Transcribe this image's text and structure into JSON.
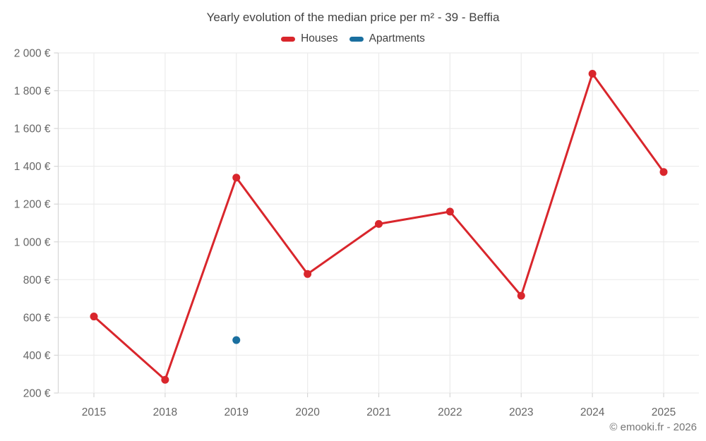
{
  "header": {
    "title": "Yearly evolution of the median price per m² - 39 - Beffia"
  },
  "legend": {
    "items": [
      {
        "label": "Houses",
        "color": "#d9262c"
      },
      {
        "label": "Apartments",
        "color": "#1a6f9f"
      }
    ]
  },
  "footer": {
    "attribution": "© emooki.fr - 2026"
  },
  "chart_data": {
    "type": "line",
    "title": "Yearly evolution of the median price per m² - 39 - Beffia",
    "categories": [
      "2015",
      "2018",
      "2019",
      "2020",
      "2021",
      "2022",
      "2023",
      "2024",
      "2025"
    ],
    "series": [
      {
        "name": "Houses",
        "color": "#d9262c",
        "values": [
          605,
          270,
          1340,
          830,
          1095,
          1160,
          715,
          1890,
          1370
        ]
      },
      {
        "name": "Apartments",
        "color": "#1a6f9f",
        "values": [
          null,
          null,
          480,
          null,
          null,
          null,
          null,
          null,
          null
        ]
      }
    ],
    "ylabel": "",
    "xlabel": "",
    "currency": "€",
    "ylim": [
      200,
      2000
    ],
    "ytick_step": 200,
    "y_tick_labels": [
      "200 €",
      "400 €",
      "600 €",
      "800 €",
      "1 000 €",
      "1 200 €",
      "1 400 €",
      "1 600 €",
      "1 800 €",
      "2 000 €"
    ],
    "grid": true,
    "legend_position": "top",
    "colors": {
      "gridline": "#ececec",
      "axis": "#d6d6d6",
      "tick_label": "#666666",
      "title_text": "#424242"
    }
  }
}
